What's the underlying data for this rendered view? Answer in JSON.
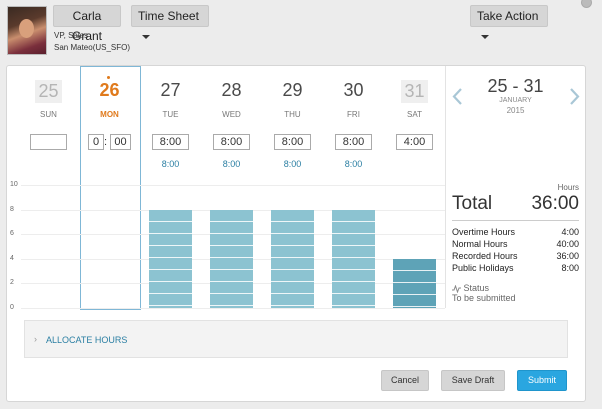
{
  "header": {
    "user_name": "Carla Grant",
    "user_role": "VP, Sales",
    "user_location": "San Mateo(US_SFO)",
    "view_label": "Time Sheet",
    "take_action_label": "Take Action"
  },
  "week": {
    "days": [
      {
        "num": "25",
        "dow": "SUN",
        "hours": "",
        "sub": ""
      },
      {
        "num": "26",
        "dow": "MON",
        "hours_h": "0",
        "hours_m": "00",
        "sub": ""
      },
      {
        "num": "27",
        "dow": "TUE",
        "hours": "8:00",
        "sub": "8:00"
      },
      {
        "num": "28",
        "dow": "WED",
        "hours": "8:00",
        "sub": "8:00"
      },
      {
        "num": "29",
        "dow": "THU",
        "hours": "8:00",
        "sub": "8:00"
      },
      {
        "num": "30",
        "dow": "FRI",
        "hours": "8:00",
        "sub": "8:00"
      },
      {
        "num": "31",
        "dow": "SAT",
        "hours": "4:00",
        "sub": ""
      }
    ],
    "time_separator": ":"
  },
  "chart_data": {
    "type": "bar",
    "categories": [
      "SUN",
      "MON",
      "TUE",
      "WED",
      "THU",
      "FRI",
      "SAT"
    ],
    "values": [
      0,
      0,
      8,
      8,
      8,
      8,
      4
    ],
    "ylim": [
      0,
      10
    ],
    "yticks": [
      "10",
      "8",
      "6",
      "4",
      "2",
      "0"
    ]
  },
  "summary": {
    "range": "25 - 31",
    "month": "JANUARY",
    "year": "2015",
    "hours_label": "Hours",
    "total_label": "Total",
    "total_value": "36:00",
    "rows": [
      {
        "label": "Overtime Hours",
        "value": "4:00"
      },
      {
        "label": "Normal Hours",
        "value": "40:00"
      },
      {
        "label": "Recorded Hours",
        "value": "36:00"
      },
      {
        "label": "Public Holidays",
        "value": "8:00"
      }
    ],
    "status_label": "Status",
    "status_value": "To be submitted"
  },
  "allocate_label": "ALLOCATE HOURS",
  "footer": {
    "cancel_label": "Cancel",
    "save_draft_label": "Save Draft",
    "submit_label": "Submit"
  },
  "colors": {
    "accent": "#e07a1c",
    "link": "#2b7fa3",
    "bar": "#8cc3d1",
    "bar_dark": "#5ea3b7",
    "submit": "#2aa6e0"
  }
}
